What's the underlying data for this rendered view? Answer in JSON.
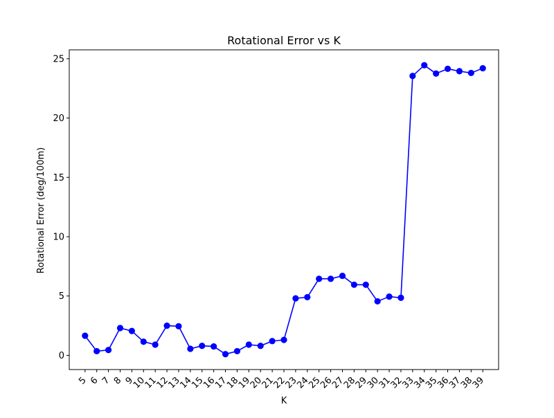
{
  "chart_data": {
    "type": "line",
    "title": "Rotational Error vs K",
    "xlabel": "K",
    "ylabel": "Rotational Error (deg/100m)",
    "categories": [
      "5",
      "6",
      "7",
      "8",
      "9",
      "10",
      "11",
      "12",
      "13",
      "14",
      "15",
      "16",
      "17",
      "18",
      "19",
      "20",
      "21",
      "22",
      "23",
      "24",
      "25",
      "26",
      "27",
      "28",
      "29",
      "30",
      "31",
      "32",
      "33",
      "34",
      "35",
      "36",
      "37",
      "38",
      "39"
    ],
    "x": [
      5,
      6,
      7,
      8,
      9,
      10,
      11,
      12,
      13,
      14,
      15,
      16,
      17,
      18,
      19,
      20,
      21,
      22,
      23,
      24,
      25,
      26,
      27,
      28,
      29,
      30,
      31,
      32,
      33,
      34,
      35,
      36,
      37,
      38,
      39
    ],
    "series": [
      {
        "values": [
          1.65,
          0.35,
          0.45,
          2.3,
          2.05,
          1.15,
          0.9,
          2.5,
          2.45,
          0.55,
          0.8,
          0.75,
          0.1,
          0.35,
          0.9,
          0.8,
          1.2,
          1.3,
          4.8,
          4.9,
          6.45,
          6.45,
          6.7,
          5.95,
          5.95,
          4.55,
          4.95,
          4.85,
          23.55,
          24.45,
          23.75,
          24.15,
          23.95,
          23.8,
          24.2
        ],
        "color": "#0000ff",
        "marker": "circle"
      }
    ],
    "yticks": [
      0,
      5,
      10,
      15,
      20,
      25
    ],
    "ylim": [
      -1.2,
      25.75
    ],
    "xlim": [
      3.65,
      40.35
    ],
    "grid": false,
    "legend": "none",
    "colors": {
      "line": "#0000ff",
      "axes": "#000000",
      "background": "#ffffff"
    }
  }
}
